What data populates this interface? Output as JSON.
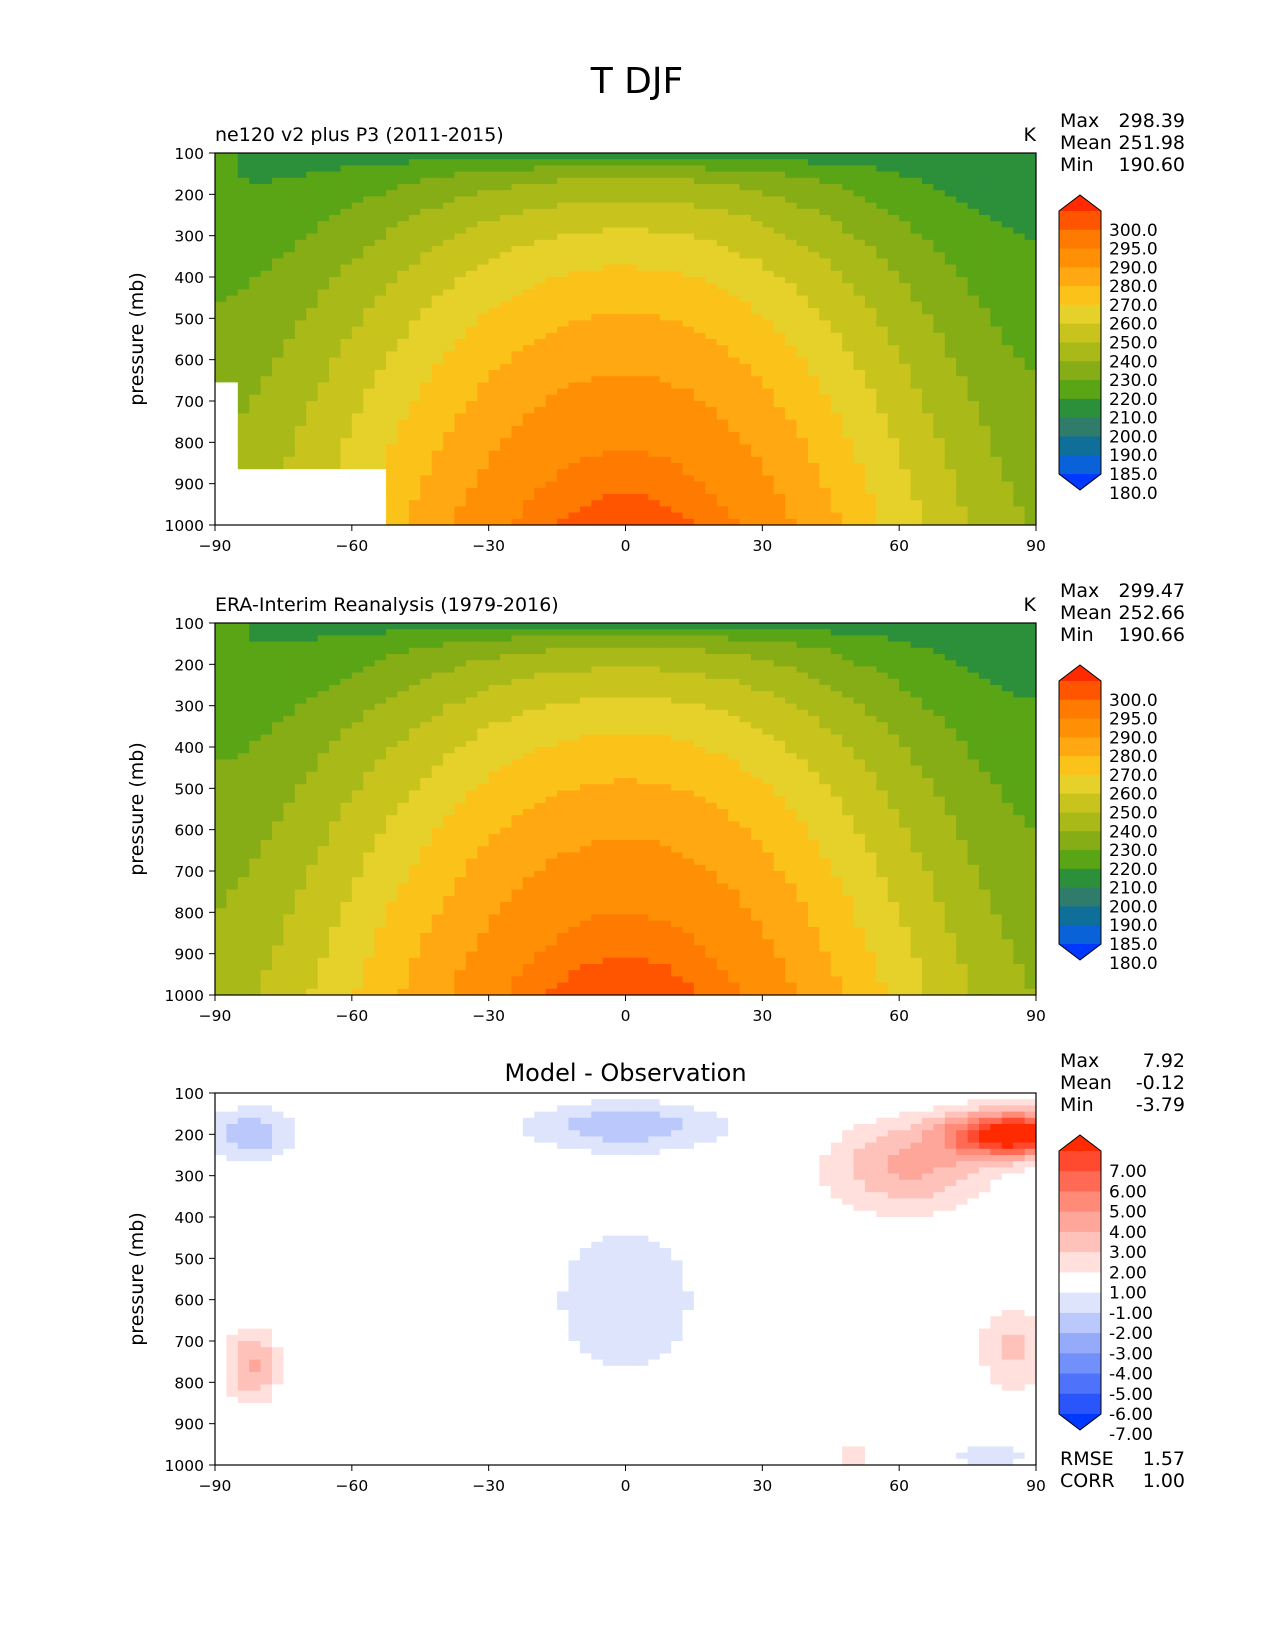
{
  "figure": {
    "title": "T DJF"
  },
  "chart_data": [
    {
      "type": "contour",
      "panel": "test",
      "title": "ne120 v2 plus P3 (2011-2015)",
      "units": "K",
      "ylabel": "pressure (mb)",
      "xlabel": "",
      "xlim": [
        -90,
        90
      ],
      "ylim": [
        1000,
        100
      ],
      "xticks": [
        "−90",
        "−60",
        "−30",
        "0",
        "30",
        "60",
        "90"
      ],
      "yticks": [
        "100",
        "200",
        "300",
        "400",
        "500",
        "600",
        "700",
        "800",
        "900",
        "1000"
      ],
      "stats": [
        {
          "label": "Max",
          "value": "298.39"
        },
        {
          "label": "Mean",
          "value": "251.98"
        },
        {
          "label": "Min",
          "value": "190.60"
        }
      ],
      "colorbar": {
        "labels": [
          "300.0",
          "295.0",
          "290.0",
          "280.0",
          "270.0",
          "260.0",
          "250.0",
          "240.0",
          "230.0",
          "220.0",
          "210.0",
          "200.0",
          "190.0",
          "185.0",
          "180.0"
        ],
        "colors": [
          "#ff2a00",
          "#ff5500",
          "#ff7a00",
          "#ff9005",
          "#ffa812",
          "#fbc31a",
          "#e6d02a",
          "#c8c41d",
          "#a8b918",
          "#86ad15",
          "#5aa516",
          "#2c8f3a",
          "#2f7c6a",
          "#0f6f99",
          "#0a62d8",
          "#0038ff"
        ]
      },
      "field": {
        "kind": "temperature",
        "masked_below_ground": true
      }
    },
    {
      "type": "contour",
      "panel": "reference",
      "title": "ERA-Interim Reanalysis (1979-2016)",
      "units": "K",
      "ylabel": "pressure (mb)",
      "xlabel": "",
      "xlim": [
        -90,
        90
      ],
      "ylim": [
        1000,
        100
      ],
      "xticks": [
        "−90",
        "−60",
        "−30",
        "0",
        "30",
        "60",
        "90"
      ],
      "yticks": [
        "100",
        "200",
        "300",
        "400",
        "500",
        "600",
        "700",
        "800",
        "900",
        "1000"
      ],
      "stats": [
        {
          "label": "Max",
          "value": "299.47"
        },
        {
          "label": "Mean",
          "value": "252.66"
        },
        {
          "label": "Min",
          "value": "190.66"
        }
      ],
      "colorbar": {
        "labels": [
          "300.0",
          "295.0",
          "290.0",
          "280.0",
          "270.0",
          "260.0",
          "250.0",
          "240.0",
          "230.0",
          "220.0",
          "210.0",
          "200.0",
          "190.0",
          "185.0",
          "180.0"
        ],
        "colors": [
          "#ff2a00",
          "#ff5500",
          "#ff7a00",
          "#ff9005",
          "#ffa812",
          "#fbc31a",
          "#e6d02a",
          "#c8c41d",
          "#a8b918",
          "#86ad15",
          "#5aa516",
          "#2c8f3a",
          "#2f7c6a",
          "#0f6f99",
          "#0a62d8",
          "#0038ff"
        ]
      },
      "field": {
        "kind": "temperature",
        "masked_below_ground": false
      }
    },
    {
      "type": "contour",
      "panel": "difference",
      "title": "Model - Observation",
      "units": "",
      "ylabel": "pressure (mb)",
      "xlabel": "",
      "xlim": [
        -90,
        90
      ],
      "ylim": [
        1000,
        100
      ],
      "xticks": [
        "−90",
        "−60",
        "−30",
        "0",
        "30",
        "60",
        "90"
      ],
      "yticks": [
        "100",
        "200",
        "300",
        "400",
        "500",
        "600",
        "700",
        "800",
        "900",
        "1000"
      ],
      "stats": [
        {
          "label": "Max",
          "value": "7.92"
        },
        {
          "label": "Mean",
          "value": "-0.12"
        },
        {
          "label": "Min",
          "value": "-3.79"
        }
      ],
      "extra_stats": [
        {
          "label": "RMSE",
          "value": "1.57"
        },
        {
          "label": "CORR",
          "value": "1.00"
        }
      ],
      "colorbar": {
        "labels": [
          "7.00",
          "6.00",
          "5.00",
          "4.00",
          "3.00",
          "2.00",
          "1.00",
          "-1.00",
          "-2.00",
          "-3.00",
          "-4.00",
          "-5.00",
          "-6.00",
          "-7.00"
        ],
        "colors": [
          "#ff2a00",
          "#ff4a30",
          "#ff6a55",
          "#ff8a78",
          "#ffa69a",
          "#ffc2bb",
          "#ffe0dc",
          "#ffffff",
          "#dde4fb",
          "#bac8fb",
          "#96aafa",
          "#7290f9",
          "#4e72fa",
          "#2a55fb",
          "#0038ff"
        ]
      },
      "field": {
        "kind": "difference"
      }
    }
  ]
}
